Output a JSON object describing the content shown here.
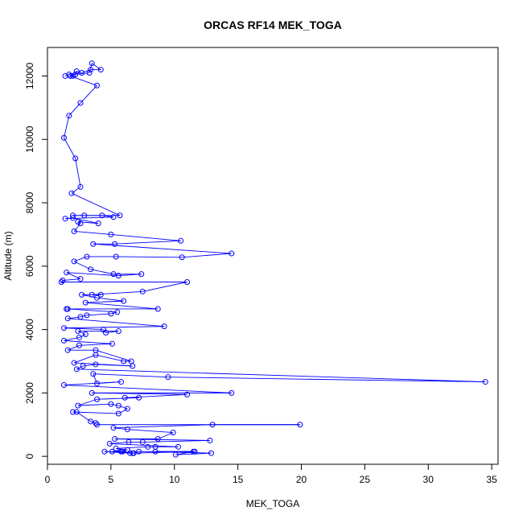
{
  "chart_data": {
    "type": "scatter",
    "title": "ORCAS RF14 MEK_TOGA",
    "xlabel": "MEK_TOGA",
    "ylabel": "Altitude (m)",
    "xlim": [
      0,
      35.5
    ],
    "ylim": [
      -250,
      12900
    ],
    "xticks": [
      0,
      5,
      10,
      15,
      20,
      25,
      30,
      35
    ],
    "yticks": [
      0,
      2000,
      4000,
      6000,
      8000,
      10000,
      12000
    ],
    "grid": false,
    "legend": "none",
    "series": [
      {
        "color": "#0000ff",
        "markers": "open-circle",
        "connected": true,
        "points": [
          [
            1.4,
            12000
          ],
          [
            1.7,
            12050
          ],
          [
            2.0,
            12000
          ],
          [
            2.3,
            12150
          ],
          [
            2.7,
            12100
          ],
          [
            3.4,
            12200
          ],
          [
            4.2,
            12200
          ],
          [
            3.5,
            12400
          ],
          [
            3.3,
            12100
          ],
          [
            2.2,
            12050
          ],
          [
            1.8,
            12000
          ],
          [
            3.9,
            11700
          ],
          [
            2.6,
            11150
          ],
          [
            1.7,
            10750
          ],
          [
            1.3,
            10050
          ],
          [
            2.2,
            9400
          ],
          [
            2.6,
            8500
          ],
          [
            1.9,
            8300
          ],
          [
            5.7,
            7600
          ],
          [
            2.0,
            7600
          ],
          [
            2.9,
            7600
          ],
          [
            4.3,
            7600
          ],
          [
            5.2,
            7550
          ],
          [
            1.4,
            7500
          ],
          [
            2.0,
            7520
          ],
          [
            4.0,
            7350
          ],
          [
            2.4,
            7400
          ],
          [
            2.6,
            7350
          ],
          [
            2.1,
            7100
          ],
          [
            5.0,
            7000
          ],
          [
            10.5,
            6800
          ],
          [
            5.3,
            6700
          ],
          [
            3.6,
            6700
          ],
          [
            14.5,
            6400
          ],
          [
            10.6,
            6280
          ],
          [
            5.4,
            6300
          ],
          [
            3.1,
            6300
          ],
          [
            2.1,
            6150
          ],
          [
            3.4,
            5900
          ],
          [
            5.2,
            5750
          ],
          [
            7.4,
            5750
          ],
          [
            5.6,
            5700
          ],
          [
            1.5,
            5800
          ],
          [
            2.6,
            5600
          ],
          [
            1.2,
            5550
          ],
          [
            1.1,
            5500
          ],
          [
            11.0,
            5500
          ],
          [
            7.5,
            5200
          ],
          [
            3.5,
            5100
          ],
          [
            4.2,
            5100
          ],
          [
            2.7,
            5100
          ],
          [
            3.9,
            5000
          ],
          [
            6.0,
            4900
          ],
          [
            3.0,
            4850
          ],
          [
            8.7,
            4650
          ],
          [
            1.5,
            4650
          ],
          [
            1.6,
            4650
          ],
          [
            5.5,
            4550
          ],
          [
            5.0,
            4500
          ],
          [
            3.1,
            4450
          ],
          [
            2.6,
            4400
          ],
          [
            1.6,
            4350
          ],
          [
            9.2,
            4100
          ],
          [
            1.3,
            4050
          ],
          [
            4.4,
            4000
          ],
          [
            4.6,
            3900
          ],
          [
            5.6,
            3950
          ],
          [
            2.4,
            3950
          ],
          [
            3.0,
            3850
          ],
          [
            2.5,
            3750
          ],
          [
            1.3,
            3650
          ],
          [
            5.1,
            3550
          ],
          [
            2.5,
            3500
          ],
          [
            1.6,
            3350
          ],
          [
            3.8,
            3350
          ],
          [
            6.6,
            3000
          ],
          [
            6.0,
            3000
          ],
          [
            3.8,
            3200
          ],
          [
            2.1,
            2950
          ],
          [
            6.7,
            2850
          ],
          [
            3.8,
            2900
          ],
          [
            2.8,
            2850
          ],
          [
            2.3,
            2750
          ],
          [
            34.5,
            2350
          ],
          [
            9.5,
            2500
          ],
          [
            3.6,
            2600
          ],
          [
            3.9,
            2300
          ],
          [
            5.8,
            2350
          ],
          [
            1.3,
            2250
          ],
          [
            14.5,
            2000
          ],
          [
            3.5,
            2000
          ],
          [
            11.0,
            1950
          ],
          [
            6.1,
            1850
          ],
          [
            7.2,
            1850
          ],
          [
            3.9,
            1800
          ],
          [
            2.4,
            1600
          ],
          [
            5.0,
            1650
          ],
          [
            5.6,
            1600
          ],
          [
            6.3,
            1500
          ],
          [
            5.6,
            1350
          ],
          [
            2.0,
            1400
          ],
          [
            2.3,
            1400
          ],
          [
            3.4,
            1100
          ],
          [
            3.8,
            1050
          ],
          [
            3.9,
            1000
          ],
          [
            19.9,
            1000
          ],
          [
            13.0,
            1000
          ],
          [
            5.2,
            900
          ],
          [
            6.3,
            850
          ],
          [
            9.9,
            750
          ],
          [
            8.7,
            550
          ],
          [
            5.3,
            550
          ],
          [
            12.8,
            500
          ],
          [
            7.5,
            450
          ],
          [
            6.4,
            450
          ],
          [
            4.9,
            400
          ],
          [
            10.3,
            300
          ],
          [
            8.5,
            300
          ],
          [
            7.9,
            300
          ],
          [
            5.4,
            250
          ],
          [
            6.3,
            200
          ],
          [
            5.1,
            150
          ],
          [
            5.8,
            150
          ],
          [
            6.5,
            100
          ],
          [
            4.5,
            150
          ],
          [
            6.8,
            100
          ],
          [
            7.2,
            150
          ],
          [
            11.6,
            150
          ],
          [
            8.5,
            150
          ],
          [
            12.9,
            100
          ],
          [
            10.1,
            50
          ],
          [
            11.5,
            150
          ],
          [
            6.7,
            100
          ],
          [
            5.9,
            150
          ]
        ]
      }
    ]
  }
}
